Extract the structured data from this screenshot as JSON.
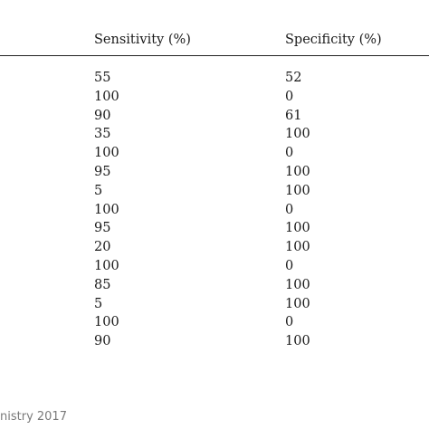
{
  "table": {
    "headers": {
      "sensitivity": "Sensitivity (%)",
      "specificity": "Specificity (%)"
    },
    "rows": [
      {
        "sensitivity": "55",
        "specificity": "52"
      },
      {
        "sensitivity": "100",
        "specificity": "0"
      },
      {
        "sensitivity": "90",
        "specificity": "61"
      },
      {
        "sensitivity": "35",
        "specificity": "100"
      },
      {
        "sensitivity": "100",
        "specificity": "0"
      },
      {
        "sensitivity": "95",
        "specificity": "100"
      },
      {
        "sensitivity": "5",
        "specificity": "100"
      },
      {
        "sensitivity": "100",
        "specificity": "0"
      },
      {
        "sensitivity": "95",
        "specificity": "100"
      },
      {
        "sensitivity": "20",
        "specificity": "100"
      },
      {
        "sensitivity": "100",
        "specificity": "0"
      },
      {
        "sensitivity": "85",
        "specificity": "100"
      },
      {
        "sensitivity": "5",
        "specificity": "100"
      },
      {
        "sensitivity": "100",
        "specificity": "0"
      },
      {
        "sensitivity": "90",
        "specificity": "100"
      }
    ]
  },
  "footer": {
    "text": "nistry 2017"
  }
}
